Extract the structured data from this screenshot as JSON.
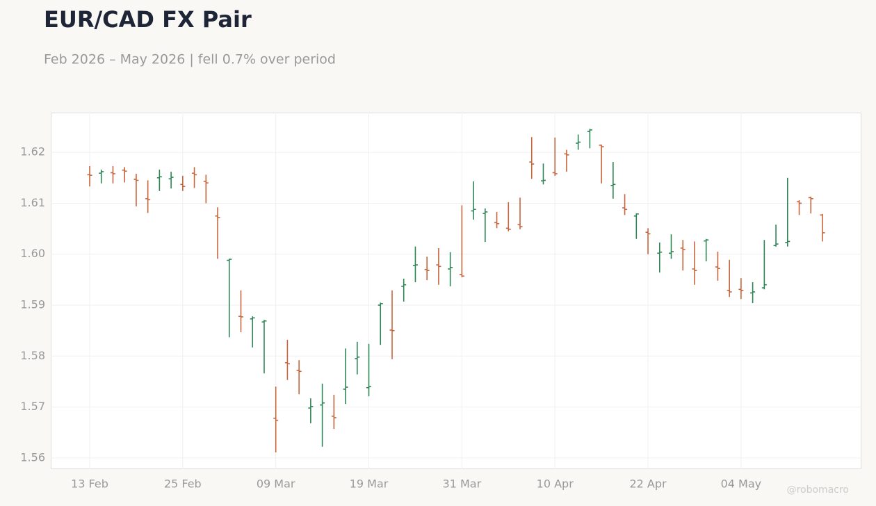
{
  "chart_data": {
    "type": "ohlc",
    "title": "EUR/CAD FX Pair",
    "subtitle": "Feb 2026 – May 2026 | fell 0.7% over period",
    "watermark": "@robomacro",
    "categories": [
      "13 Feb",
      null,
      null,
      null,
      null,
      null,
      null,
      null,
      "25 Feb",
      null,
      null,
      null,
      null,
      null,
      null,
      null,
      "09 Mar",
      null,
      null,
      null,
      null,
      null,
      null,
      null,
      "19 Mar",
      null,
      null,
      null,
      null,
      null,
      null,
      null,
      "31 Mar",
      null,
      null,
      null,
      null,
      null,
      null,
      null,
      "10 Apr",
      null,
      null,
      null,
      null,
      null,
      null,
      null,
      "22 Apr",
      null,
      null,
      null,
      null,
      null,
      null,
      null,
      "04 May",
      null,
      null,
      null,
      null,
      null,
      null,
      null
    ],
    "open": [
      1.6156,
      1.6159,
      1.616,
      1.6165,
      1.6147,
      1.6109,
      1.615,
      1.6148,
      1.6137,
      1.6159,
      1.6143,
      1.6075,
      1.5988,
      1.5878,
      1.5873,
      1.5867,
      1.5678,
      1.5787,
      1.5772,
      1.5698,
      1.5704,
      1.5682,
      1.5735,
      1.5795,
      1.5738,
      1.59,
      1.5851,
      1.5937,
      1.5978,
      1.597,
      1.5979,
      1.5971,
      1.596,
      1.6085,
      1.608,
      1.6062,
      1.6051,
      1.6058,
      1.6181,
      1.6144,
      1.616,
      1.6197,
      1.6218,
      1.6241,
      1.6214,
      1.6135,
      1.6091,
      1.6075,
      1.6043,
      1.6002,
      1.6002,
      1.6012,
      1.5971,
      1.6026,
      1.5975,
      1.5929,
      1.5931,
      1.5924,
      1.5934,
      1.6017,
      1.6023,
      1.6103,
      1.6111,
      1.6077
    ],
    "high": [
      1.6173,
      1.6166,
      1.6173,
      1.6171,
      1.6158,
      1.6145,
      1.6166,
      1.6162,
      1.6154,
      1.6171,
      1.6156,
      1.6092,
      1.5991,
      1.5929,
      1.5878,
      1.5871,
      1.574,
      1.5832,
      1.5792,
      1.5717,
      1.5746,
      1.5724,
      1.5815,
      1.5828,
      1.5824,
      1.5905,
      1.5929,
      1.5952,
      1.6015,
      1.5995,
      1.6012,
      1.6004,
      1.6096,
      1.6143,
      1.609,
      1.6083,
      1.6102,
      1.6111,
      1.623,
      1.6178,
      1.6229,
      1.6205,
      1.6235,
      1.6246,
      1.6215,
      1.6181,
      1.6118,
      1.608,
      1.6051,
      1.6023,
      1.6039,
      1.6028,
      1.6025,
      1.603,
      1.6005,
      1.5989,
      1.5953,
      1.5945,
      1.6028,
      1.6058,
      1.615,
      1.6106,
      1.6113,
      1.6079
    ],
    "low": [
      1.6133,
      1.6139,
      1.6139,
      1.6141,
      1.6094,
      1.6081,
      1.6124,
      1.6129,
      1.6124,
      1.613,
      1.61,
      1.5991,
      1.5837,
      1.5847,
      1.5817,
      1.5766,
      1.5611,
      1.5753,
      1.5725,
      1.5668,
      1.5622,
      1.5657,
      1.5706,
      1.5764,
      1.5721,
      1.5822,
      1.5794,
      1.5907,
      1.5945,
      1.5949,
      1.594,
      1.5937,
      1.5955,
      1.6068,
      1.6024,
      1.6051,
      1.6045,
      1.6049,
      1.6148,
      1.6137,
      1.6154,
      1.6162,
      1.6205,
      1.6208,
      1.6139,
      1.6109,
      1.6077,
      1.603,
      1.6,
      1.5964,
      1.5991,
      1.5968,
      1.594,
      1.5986,
      1.5948,
      1.5916,
      1.5912,
      1.5904,
      1.5931,
      1.6015,
      1.6015,
      1.6077,
      1.608,
      1.6025
    ],
    "close": [
      1.6155,
      1.6162,
      1.6158,
      1.6163,
      1.6145,
      1.6107,
      1.6152,
      1.6151,
      1.6133,
      1.6156,
      1.614,
      1.6072,
      1.599,
      1.5877,
      1.5875,
      1.5869,
      1.5674,
      1.5785,
      1.577,
      1.5701,
      1.5708,
      1.5679,
      1.5739,
      1.5798,
      1.574,
      1.5903,
      1.585,
      1.594,
      1.5979,
      1.5968,
      1.5976,
      1.5974,
      1.5957,
      1.6088,
      1.6083,
      1.606,
      1.6049,
      1.6054,
      1.6177,
      1.6145,
      1.6158,
      1.6195,
      1.622,
      1.6244,
      1.6211,
      1.6137,
      1.6088,
      1.6079,
      1.604,
      1.6004,
      1.6005,
      1.6009,
      1.5968,
      1.6028,
      1.5972,
      1.5926,
      1.5929,
      1.5926,
      1.594,
      1.602,
      1.6025,
      1.61,
      1.6109,
      1.6042
    ],
    "up_color": "#2e8555",
    "down_color": "#c8643c",
    "ylim": [
      1.5578,
      1.6278
    ],
    "yticks": [
      1.56,
      1.57,
      1.58,
      1.59,
      {
        "value": 1.6,
        "label": "1.60"
      },
      1.61,
      1.62
    ],
    "grid": true
  }
}
